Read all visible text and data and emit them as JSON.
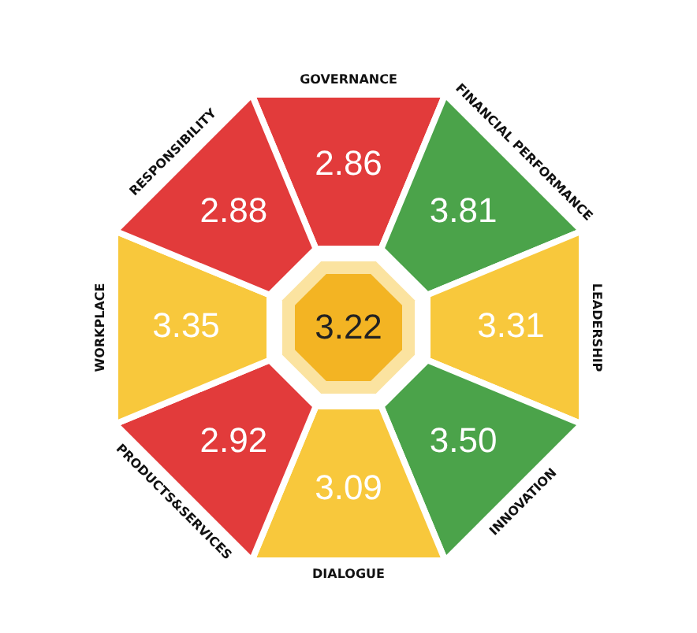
{
  "chart_data": {
    "type": "other",
    "categories": [
      "GOVERNANCE",
      "FINANCIAL PERFORMANCE",
      "LEADERSHIP",
      "INNOVATION",
      "DIALOGUE",
      "PRODUCTS&SERVICES",
      "WORKPLACE",
      "RESPONSIBILITY"
    ],
    "values": [
      2.86,
      3.81,
      3.31,
      3.5,
      3.09,
      2.92,
      3.35,
      2.88
    ],
    "data_labels": true,
    "value_labels": [
      "2.86",
      "3.81",
      "3.31",
      "3.50",
      "3.09",
      "2.92",
      "3.35",
      "2.88"
    ],
    "colors": [
      "#e23b3b",
      "#4ba34a",
      "#f8c83c",
      "#4ba34a",
      "#f8c83c",
      "#e23b3b",
      "#f8c83c",
      "#e23b3b"
    ],
    "annotations": [
      "3.22"
    ]
  }
}
